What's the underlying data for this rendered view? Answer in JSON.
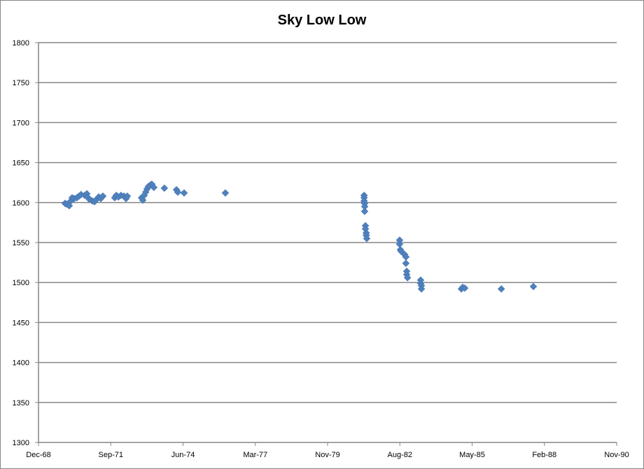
{
  "chart_data": {
    "type": "scatter",
    "title": "Sky Low Low",
    "xlabel": "",
    "ylabel": "",
    "x_units": "decimal year",
    "xlim": [
      1968.92,
      1990.92
    ],
    "ylim": [
      1300,
      1800
    ],
    "y_ticks": [
      1300,
      1350,
      1400,
      1450,
      1500,
      1550,
      1600,
      1650,
      1700,
      1750,
      1800
    ],
    "x_tick_labels": [
      "Dec-68",
      "Sep-71",
      "Jun-74",
      "Mar-77",
      "Nov-79",
      "Aug-82",
      "May-85",
      "Feb-88",
      "Nov-90"
    ],
    "grid": "horizontal",
    "legend": "none",
    "marker_color": "#4F81BD",
    "series": [
      {
        "name": "Sky Low Low",
        "points": [
          [
            1969.93,
            1599
          ],
          [
            1969.99,
            1598
          ],
          [
            1970.09,
            1596
          ],
          [
            1970.15,
            1602
          ],
          [
            1970.2,
            1606
          ],
          [
            1970.28,
            1605
          ],
          [
            1970.38,
            1606
          ],
          [
            1970.46,
            1608
          ],
          [
            1970.54,
            1610
          ],
          [
            1970.68,
            1609
          ],
          [
            1970.76,
            1611
          ],
          [
            1970.81,
            1606
          ],
          [
            1970.86,
            1604
          ],
          [
            1970.97,
            1602
          ],
          [
            1971.05,
            1601
          ],
          [
            1971.13,
            1604
          ],
          [
            1971.21,
            1607
          ],
          [
            1971.29,
            1605
          ],
          [
            1971.37,
            1608
          ],
          [
            1971.82,
            1606
          ],
          [
            1971.88,
            1609
          ],
          [
            1971.96,
            1607
          ],
          [
            1972.06,
            1609
          ],
          [
            1972.17,
            1608
          ],
          [
            1972.25,
            1605
          ],
          [
            1972.3,
            1608
          ],
          [
            1972.84,
            1606
          ],
          [
            1972.89,
            1603
          ],
          [
            1972.94,
            1609
          ],
          [
            1973.0,
            1613
          ],
          [
            1973.05,
            1617
          ],
          [
            1973.1,
            1620
          ],
          [
            1973.18,
            1622
          ],
          [
            1973.23,
            1623
          ],
          [
            1973.31,
            1619
          ],
          [
            1973.71,
            1618
          ],
          [
            1974.17,
            1616
          ],
          [
            1974.22,
            1613
          ],
          [
            1974.46,
            1612
          ],
          [
            1976.03,
            1612
          ],
          [
            1981.31,
            1609
          ],
          [
            1981.31,
            1606
          ],
          [
            1981.31,
            1602
          ],
          [
            1981.33,
            1599
          ],
          [
            1981.33,
            1595
          ],
          [
            1981.33,
            1589
          ],
          [
            1981.36,
            1571
          ],
          [
            1981.36,
            1567
          ],
          [
            1981.39,
            1562
          ],
          [
            1981.39,
            1559
          ],
          [
            1981.41,
            1555
          ],
          [
            1982.66,
            1553
          ],
          [
            1982.66,
            1548
          ],
          [
            1982.69,
            1541
          ],
          [
            1982.72,
            1539
          ],
          [
            1982.85,
            1535
          ],
          [
            1982.9,
            1532
          ],
          [
            1982.9,
            1524
          ],
          [
            1982.93,
            1514
          ],
          [
            1982.93,
            1510
          ],
          [
            1982.96,
            1506
          ],
          [
            1983.46,
            1503
          ],
          [
            1983.46,
            1499
          ],
          [
            1983.49,
            1496
          ],
          [
            1983.49,
            1492
          ],
          [
            1985.01,
            1492
          ],
          [
            1985.06,
            1494
          ],
          [
            1985.14,
            1493
          ],
          [
            1986.53,
            1492
          ],
          [
            1987.75,
            1495
          ]
        ]
      }
    ]
  }
}
